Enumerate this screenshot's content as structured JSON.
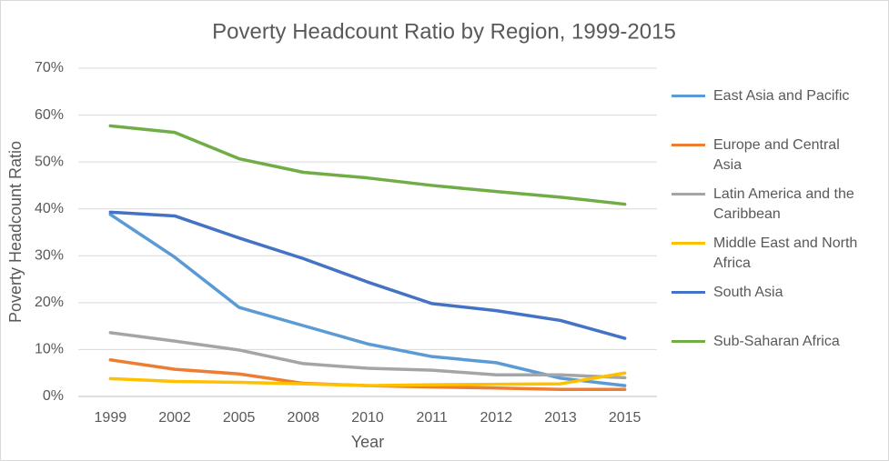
{
  "chart_data": {
    "type": "line",
    "title": "Poverty Headcount Ratio by Region, 1999-2015",
    "x_label": "Year",
    "y_label": "Poverty Headcount Ratio",
    "categories": [
      "1999",
      "2002",
      "2005",
      "2008",
      "2010",
      "2011",
      "2012",
      "2013",
      "2015"
    ],
    "ylim": [
      0,
      70
    ],
    "yticks": [
      {
        "value": 0,
        "label": "0%"
      },
      {
        "value": 10,
        "label": "10%"
      },
      {
        "value": 20,
        "label": "20%"
      },
      {
        "value": 30,
        "label": "30%"
      },
      {
        "value": 40,
        "label": "40%"
      },
      {
        "value": 50,
        "label": "50%"
      },
      {
        "value": 60,
        "label": "60%"
      },
      {
        "value": 70,
        "label": "70%"
      }
    ],
    "grid": true,
    "legend": "right",
    "series": [
      {
        "name": "East Asia and Pacific",
        "color": "#5b9bd5",
        "values": [
          38.8,
          29.7,
          19.0,
          15.1,
          11.2,
          8.5,
          7.2,
          3.9,
          2.3
        ]
      },
      {
        "name": "Europe and Central Asia",
        "color": "#ed7d31",
        "values": [
          7.8,
          5.8,
          4.8,
          2.8,
          2.3,
          2.0,
          1.8,
          1.5,
          1.5
        ]
      },
      {
        "name": "Latin America and the Caribbean",
        "color": "#a5a5a5",
        "values": [
          13.6,
          11.8,
          9.9,
          7.0,
          6.0,
          5.6,
          4.6,
          4.6,
          4.0
        ]
      },
      {
        "name": "Middle East and North Africa",
        "color": "#ffc000",
        "values": [
          3.8,
          3.2,
          3.0,
          2.7,
          2.3,
          2.5,
          2.6,
          2.7,
          5.0
        ]
      },
      {
        "name": "South Asia",
        "color": "#4472c4",
        "values": [
          39.3,
          38.5,
          33.8,
          29.4,
          24.4,
          19.8,
          18.3,
          16.2,
          12.4
        ]
      },
      {
        "name": "Sub-Saharan Africa",
        "color": "#70ad47",
        "values": [
          57.7,
          56.3,
          50.7,
          47.8,
          46.6,
          45.0,
          43.7,
          42.5,
          41.0
        ]
      }
    ]
  }
}
